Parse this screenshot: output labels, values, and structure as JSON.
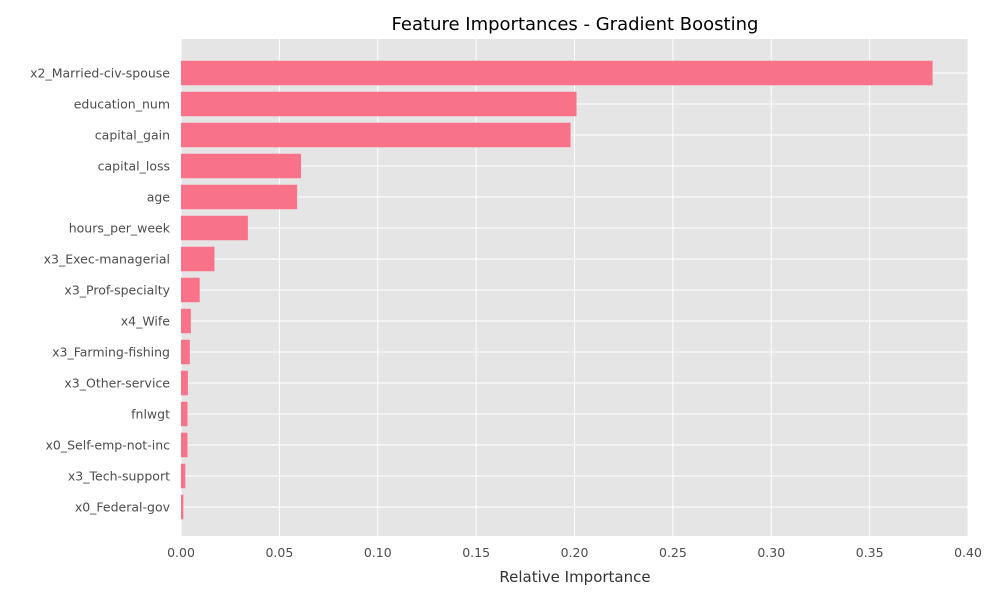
{
  "chart_data": {
    "type": "bar",
    "orientation": "horizontal",
    "title": "Feature Importances - Gradient Boosting",
    "xlabel": "Relative Importance",
    "ylabel": "",
    "xlim": [
      0,
      0.4
    ],
    "xticks": [
      "0.00",
      "0.05",
      "0.10",
      "0.15",
      "0.20",
      "0.25",
      "0.30",
      "0.35",
      "0.40"
    ],
    "grid": true,
    "background_color": "#e5e5e5",
    "bar_color": "#f8728a",
    "categories": [
      "x2_Married-civ-spouse",
      "education_num",
      "capital_gain",
      "capital_loss",
      "age",
      "hours_per_week",
      "x3_Exec-managerial",
      "x3_Prof-specialty",
      "x4_Wife",
      "x3_Farming-fishing",
      "x3_Other-service",
      "fnlwgt",
      "x0_Self-emp-not-inc",
      "x3_Tech-support",
      "x0_Federal-gov"
    ],
    "values": [
      0.382,
      0.201,
      0.198,
      0.061,
      0.059,
      0.034,
      0.017,
      0.0095,
      0.005,
      0.0045,
      0.0035,
      0.0033,
      0.0033,
      0.0022,
      0.0012
    ]
  }
}
